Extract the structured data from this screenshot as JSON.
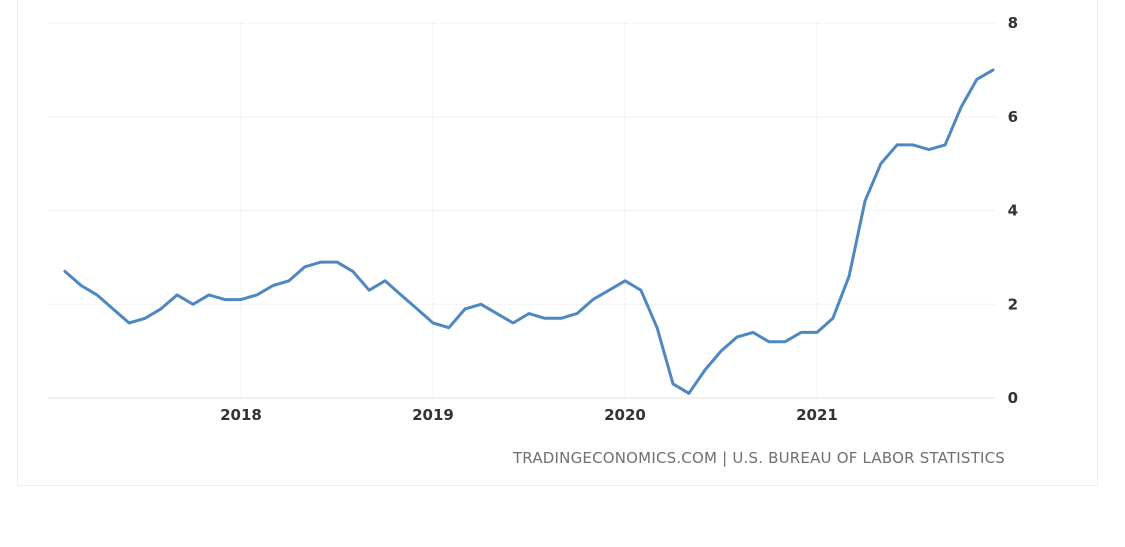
{
  "chart_data": {
    "type": "line",
    "title": "",
    "xlabel": "",
    "ylabel": "",
    "ylim": [
      0,
      8
    ],
    "y_ticks": [
      "0",
      "2",
      "4",
      "6",
      "8"
    ],
    "x_ticks": [
      {
        "label": "2018",
        "x": 2018
      },
      {
        "label": "2019",
        "x": 2019
      },
      {
        "label": "2020",
        "x": 2020
      },
      {
        "label": "2021",
        "x": 2021
      }
    ],
    "grid": true,
    "line_color": "#4f88c0",
    "series": [
      {
        "values": [
          {
            "x": 2017.083,
            "y": 2.7
          },
          {
            "x": 2017.167,
            "y": 2.4
          },
          {
            "x": 2017.25,
            "y": 2.2
          },
          {
            "x": 2017.333,
            "y": 1.9
          },
          {
            "x": 2017.417,
            "y": 1.6
          },
          {
            "x": 2017.5,
            "y": 1.7
          },
          {
            "x": 2017.583,
            "y": 1.9
          },
          {
            "x": 2017.667,
            "y": 2.2
          },
          {
            "x": 2017.75,
            "y": 2.0
          },
          {
            "x": 2017.833,
            "y": 2.2
          },
          {
            "x": 2017.917,
            "y": 2.1
          },
          {
            "x": 2018.0,
            "y": 2.1
          },
          {
            "x": 2018.083,
            "y": 2.2
          },
          {
            "x": 2018.167,
            "y": 2.4
          },
          {
            "x": 2018.25,
            "y": 2.5
          },
          {
            "x": 2018.333,
            "y": 2.8
          },
          {
            "x": 2018.417,
            "y": 2.9
          },
          {
            "x": 2018.5,
            "y": 2.9
          },
          {
            "x": 2018.583,
            "y": 2.7
          },
          {
            "x": 2018.667,
            "y": 2.3
          },
          {
            "x": 2018.75,
            "y": 2.5
          },
          {
            "x": 2018.833,
            "y": 2.2
          },
          {
            "x": 2018.917,
            "y": 1.9
          },
          {
            "x": 2019.0,
            "y": 1.6
          },
          {
            "x": 2019.083,
            "y": 1.5
          },
          {
            "x": 2019.167,
            "y": 1.9
          },
          {
            "x": 2019.25,
            "y": 2.0
          },
          {
            "x": 2019.333,
            "y": 1.8
          },
          {
            "x": 2019.417,
            "y": 1.6
          },
          {
            "x": 2019.5,
            "y": 1.8
          },
          {
            "x": 2019.583,
            "y": 1.7
          },
          {
            "x": 2019.667,
            "y": 1.7
          },
          {
            "x": 2019.75,
            "y": 1.8
          },
          {
            "x": 2019.833,
            "y": 2.1
          },
          {
            "x": 2019.917,
            "y": 2.3
          },
          {
            "x": 2020.0,
            "y": 2.5
          },
          {
            "x": 2020.083,
            "y": 2.3
          },
          {
            "x": 2020.167,
            "y": 1.5
          },
          {
            "x": 2020.25,
            "y": 0.3
          },
          {
            "x": 2020.333,
            "y": 0.1
          },
          {
            "x": 2020.417,
            "y": 0.6
          },
          {
            "x": 2020.5,
            "y": 1.0
          },
          {
            "x": 2020.583,
            "y": 1.3
          },
          {
            "x": 2020.667,
            "y": 1.4
          },
          {
            "x": 2020.75,
            "y": 1.2
          },
          {
            "x": 2020.833,
            "y": 1.2
          },
          {
            "x": 2020.917,
            "y": 1.4
          },
          {
            "x": 2021.0,
            "y": 1.4
          },
          {
            "x": 2021.083,
            "y": 1.7
          },
          {
            "x": 2021.167,
            "y": 2.6
          },
          {
            "x": 2021.25,
            "y": 4.2
          },
          {
            "x": 2021.333,
            "y": 5.0
          },
          {
            "x": 2021.417,
            "y": 5.4
          },
          {
            "x": 2021.5,
            "y": 5.4
          },
          {
            "x": 2021.583,
            "y": 5.3
          },
          {
            "x": 2021.667,
            "y": 5.4
          },
          {
            "x": 2021.75,
            "y": 6.2
          },
          {
            "x": 2021.833,
            "y": 6.8
          },
          {
            "x": 2021.917,
            "y": 7.0
          }
        ]
      }
    ],
    "source": "TRADINGECONOMICS.COM | U.S. BUREAU OF LABOR STATISTICS"
  }
}
